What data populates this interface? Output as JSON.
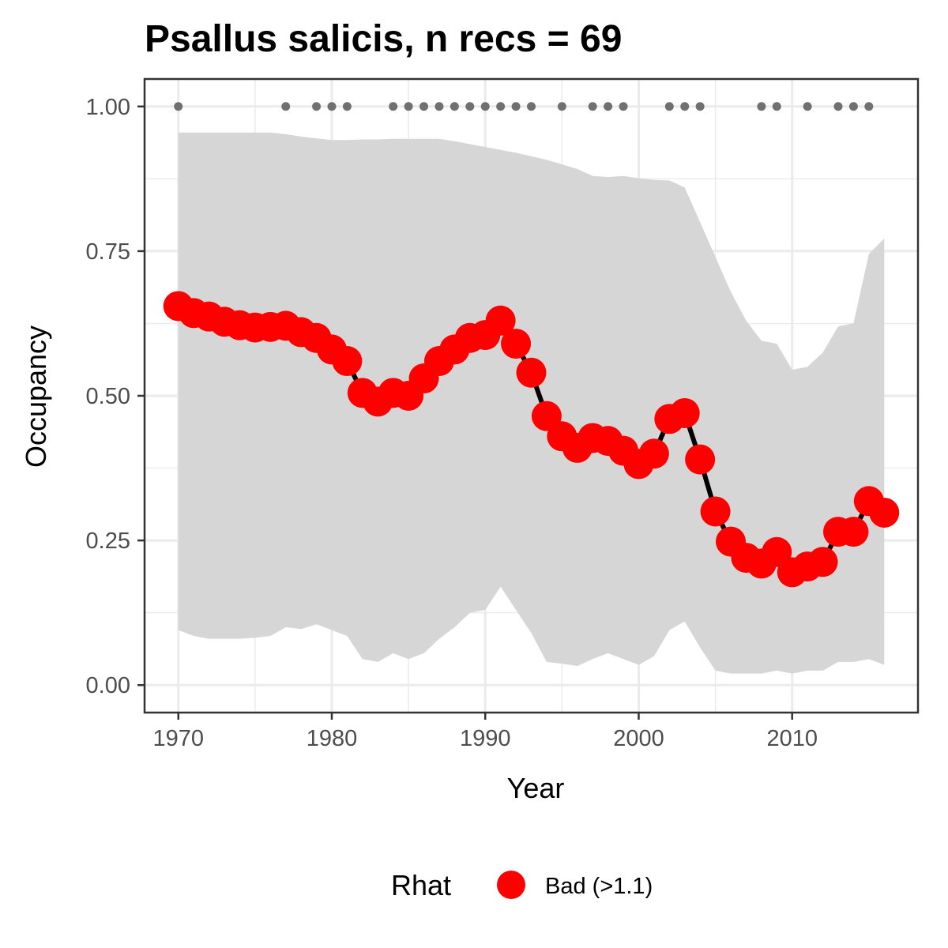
{
  "chart_data": {
    "type": "line",
    "title": "Psallus salicis, n recs = 69",
    "xlabel": "Year",
    "ylabel": "Occupancy",
    "xlim": [
      1967.8,
      2018.2
    ],
    "ylim": [
      -0.0475,
      1.0475
    ],
    "x_ticks": [
      1970,
      1980,
      1990,
      2000,
      2010
    ],
    "x_tick_labels": [
      "1970",
      "1980",
      "1990",
      "2000",
      "2010"
    ],
    "y_ticks": [
      0,
      0.25,
      0.5,
      0.75,
      1.0
    ],
    "y_tick_labels": [
      "0.00",
      "0.25",
      "0.50",
      "0.75",
      "1.00"
    ],
    "grid": true,
    "series": [
      {
        "x": [
          1970,
          1971,
          1972,
          1973,
          1974,
          1975,
          1976,
          1977,
          1978,
          1979,
          1980,
          1981,
          1982,
          1983,
          1984,
          1985,
          1986,
          1987,
          1988,
          1989,
          1990,
          1991,
          1992,
          1993,
          1994,
          1995,
          1996,
          1997,
          1998,
          1999,
          2000,
          2001,
          2002,
          2003,
          2004,
          2005,
          2006,
          2007,
          2008,
          2009,
          2010,
          2011,
          2012,
          2013,
          2014,
          2015,
          2016
        ],
        "y": [
          0.655,
          0.643,
          0.637,
          0.628,
          0.622,
          0.618,
          0.619,
          0.621,
          0.61,
          0.6,
          0.58,
          0.56,
          0.505,
          0.49,
          0.505,
          0.5,
          0.53,
          0.56,
          0.58,
          0.6,
          0.605,
          0.63,
          0.59,
          0.54,
          0.465,
          0.43,
          0.41,
          0.427,
          0.422,
          0.405,
          0.382,
          0.4,
          0.46,
          0.47,
          0.39,
          0.3,
          0.248,
          0.22,
          0.21,
          0.23,
          0.195,
          0.205,
          0.213,
          0.265,
          0.265,
          0.318,
          0.298
        ],
        "lower": [
          0.095,
          0.085,
          0.08,
          0.08,
          0.08,
          0.082,
          0.085,
          0.1,
          0.097,
          0.105,
          0.095,
          0.085,
          0.045,
          0.04,
          0.055,
          0.045,
          0.055,
          0.08,
          0.1,
          0.125,
          0.13,
          0.17,
          0.13,
          0.09,
          0.04,
          0.037,
          0.033,
          0.045,
          0.055,
          0.045,
          0.035,
          0.05,
          0.095,
          0.11,
          0.065,
          0.025,
          0.02,
          0.02,
          0.02,
          0.025,
          0.02,
          0.025,
          0.025,
          0.04,
          0.04,
          0.045,
          0.035
        ],
        "upper": [
          0.955,
          0.955,
          0.955,
          0.955,
          0.955,
          0.955,
          0.955,
          0.952,
          0.948,
          0.945,
          0.942,
          0.942,
          0.943,
          0.943,
          0.944,
          0.944,
          0.944,
          0.944,
          0.94,
          0.935,
          0.93,
          0.925,
          0.92,
          0.914,
          0.908,
          0.9,
          0.892,
          0.88,
          0.878,
          0.88,
          0.876,
          0.873,
          0.872,
          0.86,
          0.8,
          0.74,
          0.68,
          0.63,
          0.595,
          0.59,
          0.545,
          0.55,
          0.575,
          0.62,
          0.625,
          0.745,
          0.772
        ],
        "rhat": [
          "Bad (>1.1)"
        ],
        "color": "#ff0000"
      }
    ],
    "records": {
      "y": 1.0,
      "years": [
        1970,
        1977,
        1979,
        1980,
        1981,
        1984,
        1985,
        1986,
        1987,
        1988,
        1989,
        1990,
        1991,
        1992,
        1993,
        1995,
        1997,
        1998,
        1999,
        2002,
        2003,
        2004,
        2008,
        2009,
        2011,
        2013,
        2014,
        2015
      ],
      "color": "#707070"
    },
    "ribbon_color": "#d6d6d6",
    "line_color": "#000000",
    "legend": {
      "position": "bottom",
      "title": "Rhat",
      "items": [
        {
          "label": "Bad (>1.1)",
          "color": "#ff0000"
        }
      ]
    }
  }
}
